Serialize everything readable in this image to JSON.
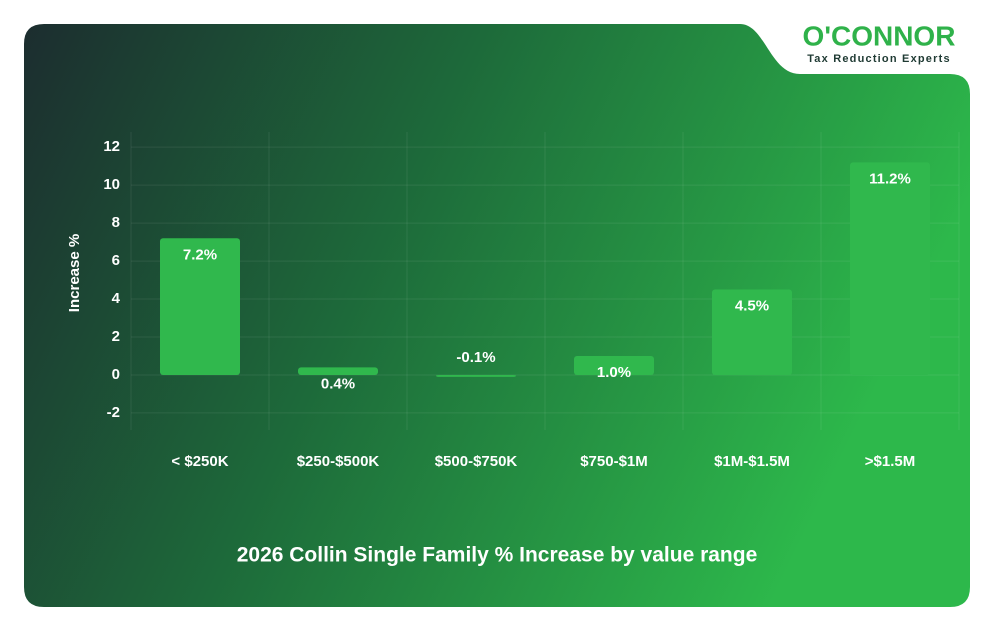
{
  "brand": {
    "name": "O'CONNOR",
    "tagline": "Tax Reduction Experts"
  },
  "chart_data": {
    "type": "bar",
    "title": "2026 Collin Single Family % Increase by value range",
    "y_label": "Increase %",
    "categories": [
      "< $250K",
      "$250-$500K",
      "$500-$750K",
      "$750-$1M",
      "$1M-$1.5M",
      ">$1.5M"
    ],
    "values": [
      7.2,
      0.4,
      -0.1,
      1.0,
      4.5,
      11.2
    ],
    "value_labels": [
      "7.2%",
      "0.4%",
      "-0.1%",
      "1.0%",
      "4.5%",
      "11.2%"
    ],
    "color": "#30b84d",
    "ylim": [
      -2.9,
      12.8
    ],
    "yticks": [
      -2,
      0,
      2,
      4,
      6,
      8,
      10,
      12
    ],
    "grid": true
  }
}
